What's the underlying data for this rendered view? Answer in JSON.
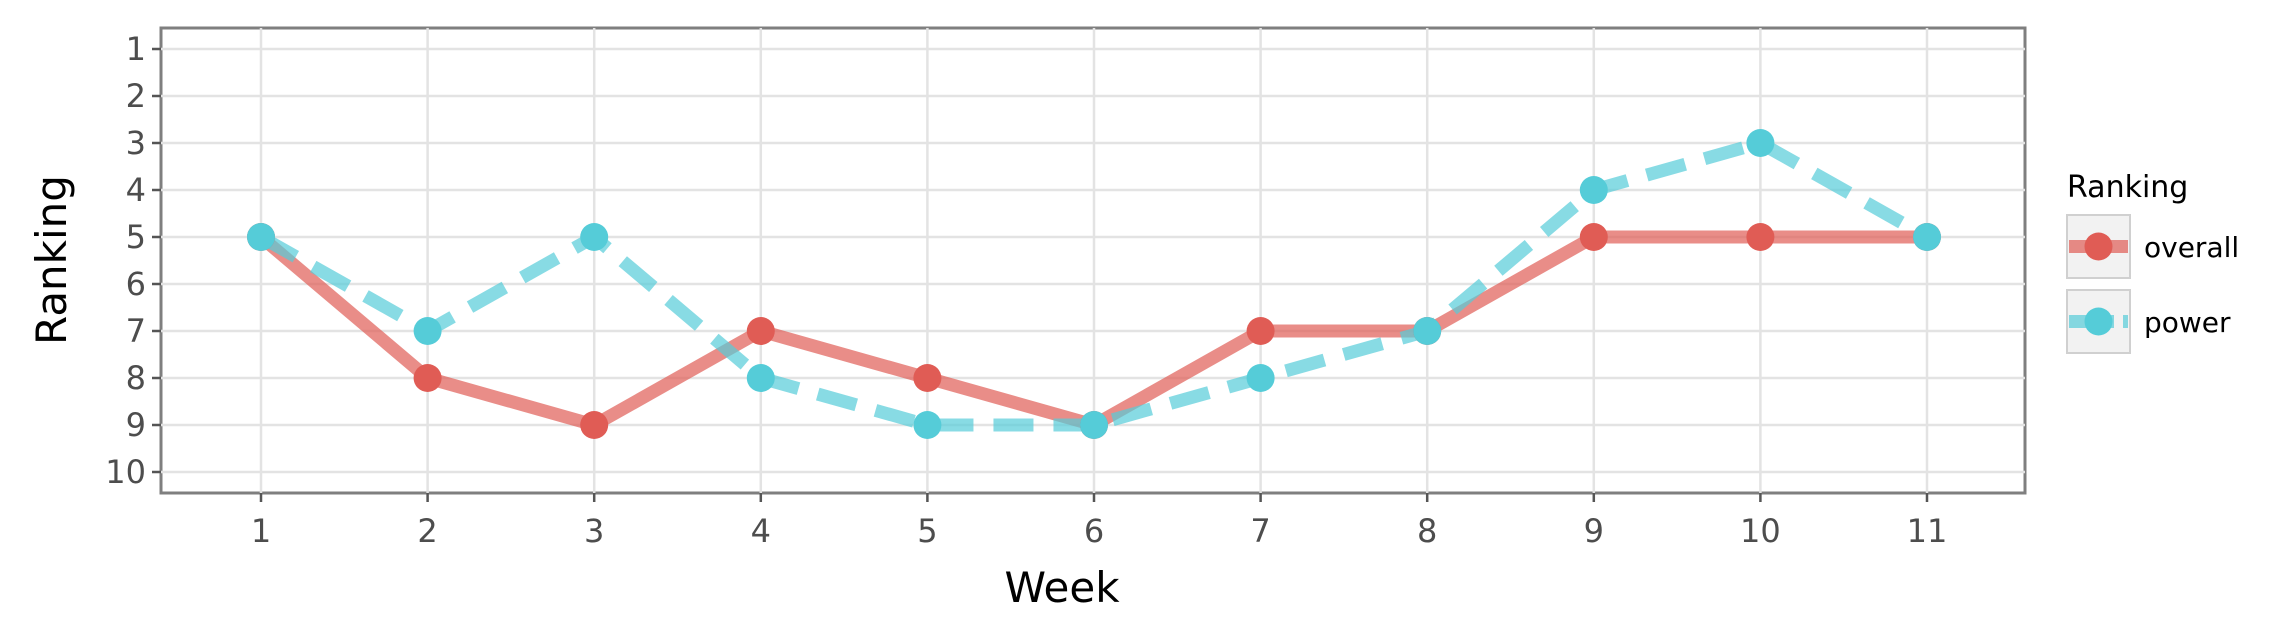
{
  "chart_data": {
    "type": "line",
    "xlabel": "Week",
    "ylabel": "Ranking",
    "x": [
      1,
      2,
      3,
      4,
      5,
      6,
      7,
      8,
      9,
      10,
      11
    ],
    "x_ticks": [
      "1",
      "2",
      "3",
      "4",
      "5",
      "6",
      "7",
      "8",
      "9",
      "10",
      "11"
    ],
    "y_ticks": [
      "1",
      "2",
      "3",
      "4",
      "5",
      "6",
      "7",
      "8",
      "9",
      "10"
    ],
    "ylim": [
      1,
      10
    ],
    "y_reversed": true,
    "grid": true,
    "legend": {
      "title": "Ranking",
      "position": "right"
    },
    "series": [
      {
        "name": "overall",
        "color": "#e05c55",
        "line_style": "solid",
        "values": [
          5,
          8,
          9,
          7,
          8,
          9,
          7,
          7,
          5,
          5,
          5
        ]
      },
      {
        "name": "power",
        "color": "#55ccd8",
        "line_style": "dashed",
        "values": [
          5,
          7,
          5,
          8,
          9,
          9,
          8,
          7,
          4,
          3,
          5
        ]
      }
    ]
  }
}
